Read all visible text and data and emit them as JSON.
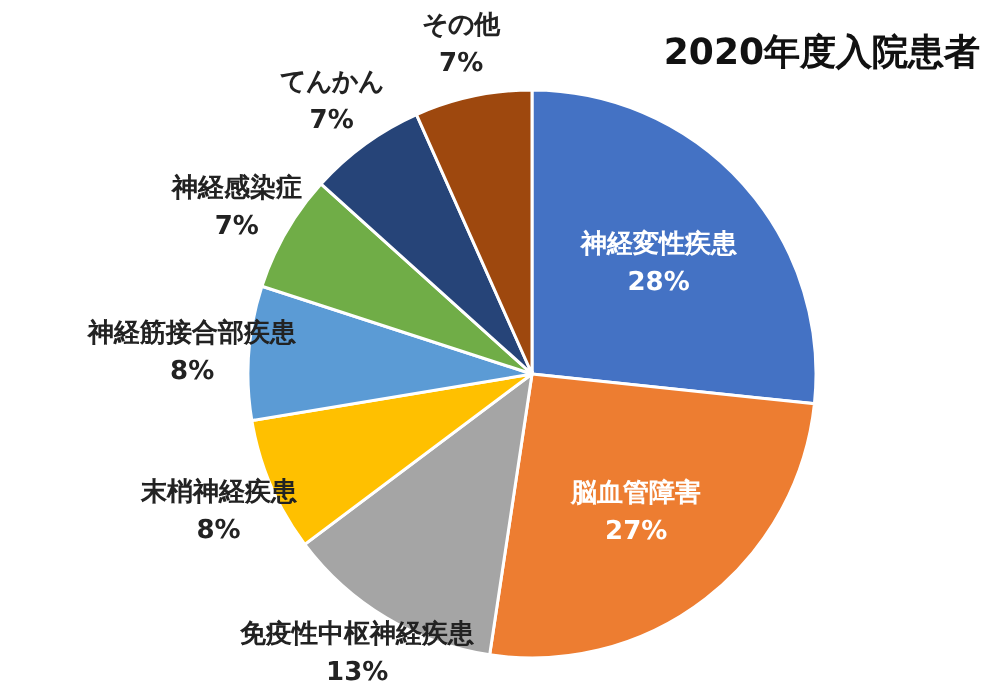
{
  "chart_data": {
    "type": "pie",
    "title": "2020年度入院患者",
    "categories": [
      "神経変性疾患",
      "脳血管障害",
      "免疫性中枢神経疾患",
      "末梢神経疾患",
      "神経筋接合部疾患",
      "神経感染症",
      "てんかん",
      "その他"
    ],
    "values": [
      28,
      27,
      13,
      8,
      8,
      7,
      7,
      7
    ],
    "value_labels": [
      "28%",
      "27%",
      "13%",
      "8%",
      "8%",
      "7%",
      "7%",
      "7%"
    ],
    "colors": [
      "#4472c4",
      "#ed7d31",
      "#a5a5a5",
      "#ffc000",
      "#5b9bd5",
      "#70ad47",
      "#264478",
      "#9e480e"
    ]
  }
}
